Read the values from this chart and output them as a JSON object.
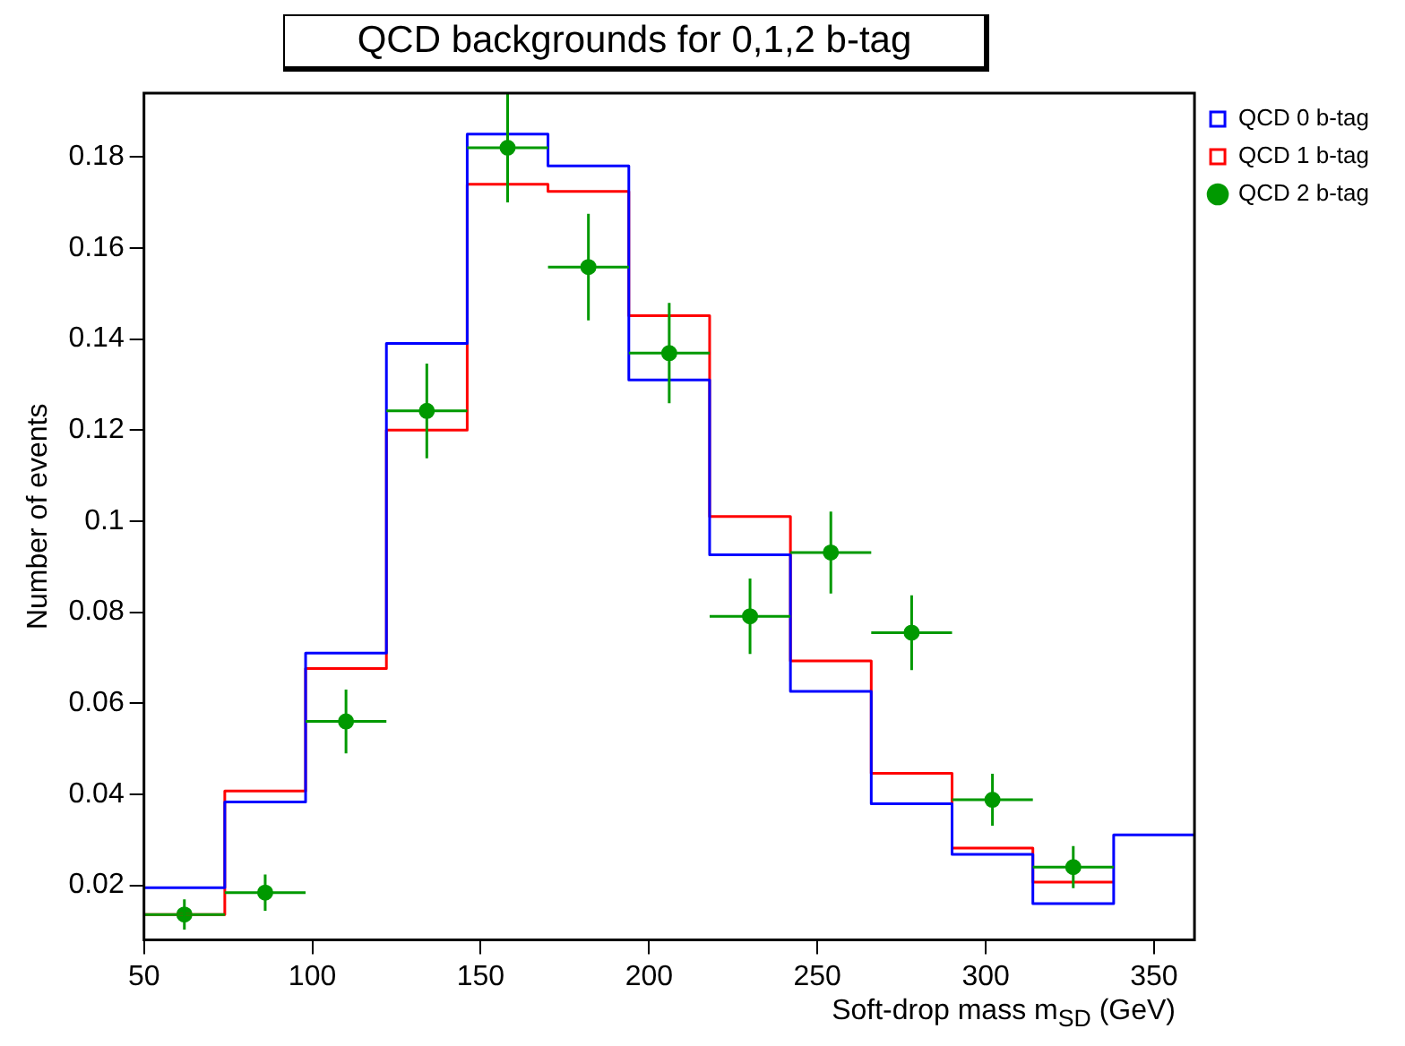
{
  "chart_data": {
    "type": "histogram",
    "title": "QCD backgrounds for 0,1,2 b-tag",
    "xlabel": "Soft-drop mass m$_{SD}$ (GeV)",
    "ylabel": "Number of events",
    "bins": [
      50,
      74,
      98,
      122,
      146,
      170,
      194,
      218,
      242,
      266,
      290,
      314,
      338,
      362
    ],
    "xlim": [
      50,
      362
    ],
    "xticks": [
      50,
      100,
      150,
      200,
      250,
      300,
      350
    ],
    "ylim": [
      0.008,
      0.194
    ],
    "yticks": [
      0.02,
      0.04,
      0.06,
      0.08,
      0.1,
      0.12,
      0.14,
      0.16,
      0.18
    ],
    "grid": false,
    "legend": "top right",
    "series": [
      {
        "name": "QCD 0 b-tag",
        "color": "#0000ff",
        "values": [
          0.0195,
          0.0383,
          0.071,
          0.139,
          0.185,
          0.178,
          0.131,
          0.0926,
          0.0626,
          0.0379,
          0.0268,
          0.016,
          0.0311
        ]
      },
      {
        "name": "QCD 1 b-tag",
        "color": "#ff0000",
        "bins": [
          50,
          74,
          98,
          122,
          146,
          170,
          194,
          218,
          242,
          266,
          290,
          314,
          338
        ],
        "values": [
          0.0136,
          0.0407,
          0.0676,
          0.12,
          0.174,
          0.1724,
          0.1451,
          0.101,
          0.0693,
          0.0446,
          0.0282,
          0.0207
        ]
      },
      {
        "name": "QCD 2 b-tag",
        "type": "scatter",
        "color": "#009900",
        "marker": "circle",
        "x": [
          62,
          86,
          110,
          134,
          158,
          182,
          206,
          230,
          254,
          278,
          302,
          326
        ],
        "values": [
          0.0136,
          0.0184,
          0.056,
          0.1242,
          0.182,
          0.1558,
          0.1369,
          0.0791,
          0.0931,
          0.0755,
          0.0388,
          0.024
        ],
        "errors": [
          0.0033,
          0.004,
          0.007,
          0.0104,
          0.012,
          0.0117,
          0.011,
          0.0083,
          0.009,
          0.0082,
          0.0057,
          0.0046
        ],
        "xerrors": [
          12,
          12,
          12,
          12,
          12,
          12,
          12,
          12,
          12,
          12,
          12,
          12
        ]
      }
    ]
  }
}
